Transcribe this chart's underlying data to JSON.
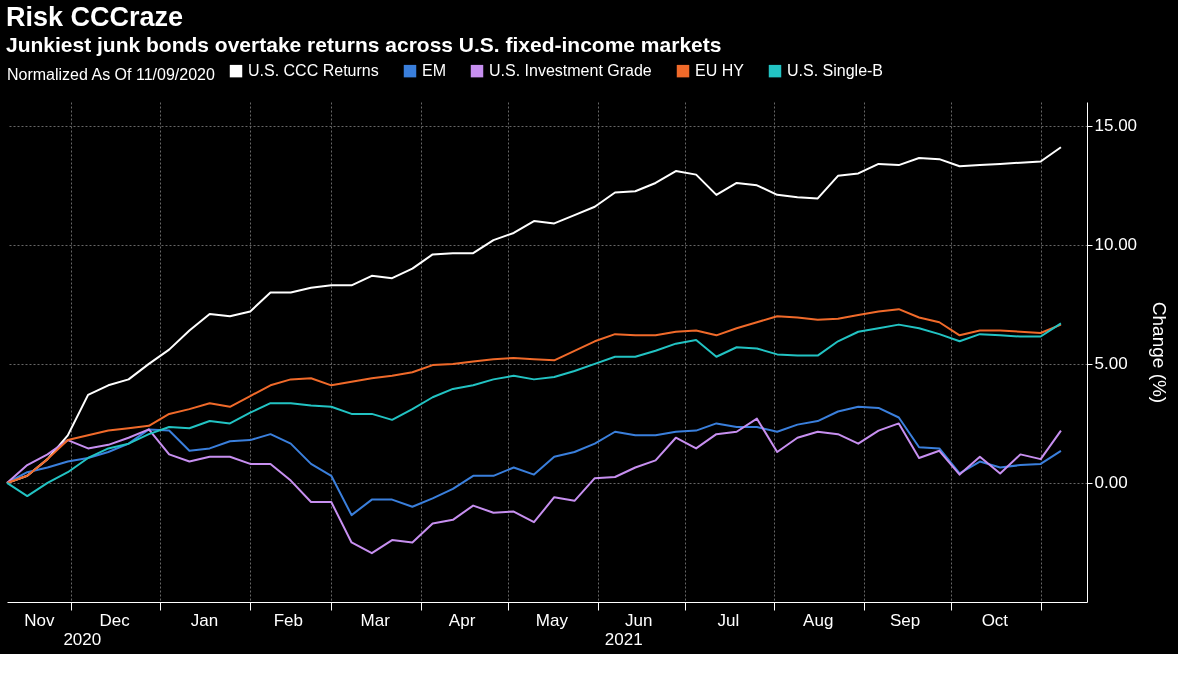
{
  "chart_data": {
    "type": "line",
    "title": "Risk CCCraze",
    "subtitle": "Junkiest junk bonds overtake returns across U.S. fixed-income markets",
    "legend_title": "Normalized As Of 11/09/2020",
    "ylabel": "Change (%)",
    "x": [
      "2020-11-09",
      "2020-11-16",
      "2020-11-23",
      "2020-11-30",
      "2020-12-07",
      "2020-12-14",
      "2020-12-21",
      "2020-12-28",
      "2021-01-04",
      "2021-01-11",
      "2021-01-18",
      "2021-01-25",
      "2021-02-01",
      "2021-02-08",
      "2021-02-15",
      "2021-02-22",
      "2021-03-01",
      "2021-03-08",
      "2021-03-15",
      "2021-03-22",
      "2021-03-29",
      "2021-04-05",
      "2021-04-12",
      "2021-04-19",
      "2021-04-26",
      "2021-05-03",
      "2021-05-10",
      "2021-05-17",
      "2021-05-24",
      "2021-05-31",
      "2021-06-07",
      "2021-06-14",
      "2021-06-21",
      "2021-06-28",
      "2021-07-05",
      "2021-07-12",
      "2021-07-19",
      "2021-07-26",
      "2021-08-02",
      "2021-08-09",
      "2021-08-16",
      "2021-08-23",
      "2021-08-30",
      "2021-09-06",
      "2021-09-13",
      "2021-09-20",
      "2021-09-27",
      "2021-10-04",
      "2021-10-11",
      "2021-10-18",
      "2021-10-25",
      "2021-11-01",
      "2021-11-08"
    ],
    "series": [
      {
        "name": "U.S. CCC Returns",
        "color": "#ffffff",
        "values": [
          0,
          0.3,
          1.0,
          2.0,
          3.7,
          4.1,
          4.35,
          5.0,
          5.6,
          6.4,
          7.1,
          7.0,
          7.2,
          8.0,
          8.0,
          8.2,
          8.3,
          8.3,
          8.7,
          8.6,
          9.0,
          9.6,
          9.65,
          9.65,
          10.2,
          10.5,
          11.0,
          10.9,
          11.25,
          11.6,
          12.2,
          12.25,
          12.6,
          13.1,
          12.95,
          12.1,
          12.6,
          12.5,
          12.1,
          12.0,
          11.95,
          12.9,
          13.0,
          13.4,
          13.35,
          13.65,
          13.6,
          13.3,
          13.35,
          13.4,
          13.45,
          13.5,
          14.1
        ]
      },
      {
        "name": "EM",
        "color": "#3a7fdc",
        "values": [
          0,
          0.45,
          0.65,
          0.9,
          1.05,
          1.3,
          1.65,
          2.25,
          2.2,
          1.35,
          1.45,
          1.75,
          1.8,
          2.05,
          1.65,
          0.8,
          0.3,
          -1.35,
          -0.7,
          -0.7,
          -1.0,
          -0.65,
          -0.25,
          0.3,
          0.3,
          0.65,
          0.35,
          1.1,
          1.3,
          1.65,
          2.15,
          2.0,
          2.0,
          2.15,
          2.2,
          2.5,
          2.35,
          2.35,
          2.15,
          2.45,
          2.6,
          3.0,
          3.2,
          3.15,
          2.75,
          1.5,
          1.45,
          0.4,
          0.9,
          0.65,
          0.75,
          0.8,
          1.35
        ]
      },
      {
        "name": "U.S. Investment Grade",
        "color": "#c78ff0",
        "values": [
          0,
          0.75,
          1.2,
          1.8,
          1.45,
          1.6,
          1.9,
          2.25,
          1.2,
          0.9,
          1.1,
          1.1,
          0.8,
          0.8,
          0.1,
          -0.8,
          -0.8,
          -2.5,
          -2.95,
          -2.4,
          -2.5,
          -1.7,
          -1.55,
          -0.95,
          -1.25,
          -1.2,
          -1.65,
          -0.6,
          -0.75,
          0.2,
          0.25,
          0.65,
          0.95,
          1.9,
          1.45,
          2.05,
          2.15,
          2.7,
          1.3,
          1.9,
          2.15,
          2.05,
          1.65,
          2.2,
          2.5,
          1.05,
          1.35,
          0.35,
          1.1,
          0.4,
          1.2,
          1.0,
          2.2
        ]
      },
      {
        "name": "EU HY",
        "color": "#f06a2a",
        "values": [
          0,
          0.3,
          1.0,
          1.8,
          2.0,
          2.2,
          2.3,
          2.4,
          2.9,
          3.1,
          3.35,
          3.2,
          3.65,
          4.1,
          4.35,
          4.4,
          4.1,
          4.25,
          4.4,
          4.5,
          4.65,
          4.95,
          5.0,
          5.1,
          5.2,
          5.25,
          5.2,
          5.15,
          5.55,
          5.95,
          6.25,
          6.2,
          6.2,
          6.35,
          6.4,
          6.2,
          6.5,
          6.75,
          7.0,
          6.95,
          6.85,
          6.9,
          7.05,
          7.2,
          7.3,
          6.95,
          6.75,
          6.2,
          6.4,
          6.4,
          6.35,
          6.3,
          6.65
        ]
      },
      {
        "name": "U.S. Single-B",
        "color": "#22c3c3",
        "values": [
          0,
          -0.55,
          0,
          0.45,
          1.05,
          1.45,
          1.65,
          2.05,
          2.35,
          2.3,
          2.6,
          2.5,
          2.95,
          3.35,
          3.35,
          3.25,
          3.2,
          2.9,
          2.9,
          2.65,
          3.1,
          3.6,
          3.95,
          4.1,
          4.35,
          4.5,
          4.35,
          4.45,
          4.7,
          5.0,
          5.3,
          5.3,
          5.55,
          5.85,
          6.0,
          5.3,
          5.7,
          5.65,
          5.4,
          5.35,
          5.35,
          5.95,
          6.35,
          6.5,
          6.65,
          6.5,
          6.25,
          5.95,
          6.25,
          6.2,
          6.15,
          6.15,
          6.7
        ]
      }
    ],
    "xlim": [
      "2020-11-09",
      "2021-11-17"
    ],
    "xticks": [
      {
        "value": "2020-12-01",
        "label": null
      },
      {
        "value": "2021-01-01",
        "label": null
      },
      {
        "value": "2021-02-01",
        "label": null
      },
      {
        "value": "2021-03-01",
        "label": null
      },
      {
        "value": "2021-04-01",
        "label": null
      },
      {
        "value": "2021-05-01",
        "label": null
      },
      {
        "value": "2021-06-01",
        "label": null
      },
      {
        "value": "2021-07-01",
        "label": null
      },
      {
        "value": "2021-08-01",
        "label": null
      },
      {
        "value": "2021-09-01",
        "label": null
      },
      {
        "value": "2021-10-01",
        "label": null
      },
      {
        "value": "2021-11-01",
        "label": null
      },
      {
        "value": "2020-11-20",
        "label": "Nov"
      },
      {
        "value": "2020-12-16",
        "label": "Dec"
      },
      {
        "value": "2021-01-16",
        "label": "Jan"
      },
      {
        "value": "2021-02-14",
        "label": "Feb"
      },
      {
        "value": "2021-03-16",
        "label": "Mar"
      },
      {
        "value": "2021-04-15",
        "label": "Apr"
      },
      {
        "value": "2021-05-16",
        "label": "May"
      },
      {
        "value": "2021-06-15",
        "label": "Jun"
      },
      {
        "value": "2021-07-16",
        "label": "Jul"
      },
      {
        "value": "2021-08-16",
        "label": "Aug"
      },
      {
        "value": "2021-09-15",
        "label": "Sep"
      },
      {
        "value": "2021-10-16",
        "label": "Oct"
      }
    ],
    "ylim": [
      -5,
      16
    ],
    "yticks": [
      {
        "value": 0,
        "label": "0.00"
      },
      {
        "value": 5,
        "label": "5.00"
      },
      {
        "value": 10,
        "label": "10.00"
      },
      {
        "value": 15,
        "label": "15.00"
      }
    ],
    "annotations": [
      "2020",
      "2021"
    ],
    "grid": true,
    "legend": "top left",
    "marker": "none",
    "line_style": "solid"
  }
}
